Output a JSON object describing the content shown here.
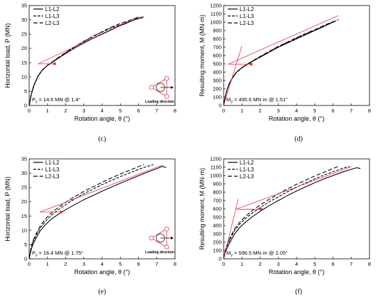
{
  "figure": {
    "inset_label": "Loading direction"
  },
  "colors": {
    "yield": "#e8323c",
    "line": "#000000",
    "inset": "#e8323c"
  },
  "chart_data": [
    {
      "id": "c",
      "type": "line",
      "caption": "(c)",
      "xlabel": "Rotation angle, θ (°)",
      "ylabel": "Horizontal load, P (MN)",
      "xlim": [
        0,
        8
      ],
      "ylim": [
        0,
        35
      ],
      "xticks": [
        0,
        1,
        2,
        3,
        4,
        5,
        6,
        7,
        8
      ],
      "yticks": [
        0,
        5,
        10,
        15,
        20,
        25,
        30,
        35
      ],
      "legend": {
        "placement": "top-left",
        "entries": [
          "L1-L2",
          "L1-L3",
          "L2-L3"
        ]
      },
      "yield_label": "P",
      "yield_sub": "y",
      "yield_value_text": " = 14.6 MN @ 1.4°",
      "yield_point": {
        "x": 1.4,
        "y": 14.6
      },
      "yield_lines": [
        [
          [
            0.5,
            14.6
          ],
          [
            1.4,
            14.6
          ]
        ],
        [
          [
            0.5,
            14.6
          ],
          [
            6.0,
            31.2
          ]
        ]
      ],
      "has_inset": true,
      "series": [
        {
          "name": "L1-L2",
          "style": "solid",
          "x": [
            0,
            0.05,
            0.1,
            0.2,
            0.3,
            0.5,
            0.7,
            1.0,
            1.4,
            1.8,
            2.2,
            2.6,
            3.0,
            3.4,
            3.8,
            4.2,
            4.6,
            5.0,
            5.3,
            5.6,
            5.9,
            6.1
          ],
          "y": [
            0,
            1.8,
            3.5,
            6.0,
            7.8,
            10.5,
            12.3,
            14.0,
            15.7,
            17.4,
            19.0,
            20.5,
            21.9,
            23.2,
            24.4,
            25.6,
            26.8,
            28.0,
            28.7,
            29.6,
            30.3,
            30.8
          ]
        },
        {
          "name": "L1-L3",
          "style": "dash",
          "x": [
            0,
            0.05,
            0.1,
            0.2,
            0.3,
            0.5,
            0.7,
            1.0,
            1.4,
            1.8,
            2.2,
            2.6,
            3.0,
            3.4,
            3.8,
            4.2,
            4.6,
            5.0,
            5.4,
            5.7,
            6.0,
            6.2
          ],
          "y": [
            0,
            1.5,
            3.2,
            5.7,
            7.6,
            10.3,
            12.2,
            14.0,
            15.8,
            17.6,
            19.3,
            20.9,
            22.4,
            23.8,
            25.1,
            26.3,
            27.4,
            28.3,
            29.2,
            29.9,
            30.4,
            30.6
          ]
        },
        {
          "name": "L2-L3",
          "style": "longdash",
          "x": [
            0,
            0.05,
            0.1,
            0.2,
            0.3,
            0.5,
            0.7,
            1.0,
            1.4,
            1.8,
            2.2,
            2.6,
            3.0,
            3.4,
            3.8,
            4.2,
            4.6,
            5.0,
            5.4,
            5.7,
            6.0,
            6.3
          ],
          "y": [
            0,
            1.7,
            3.4,
            5.9,
            7.7,
            10.4,
            12.3,
            14.1,
            15.9,
            17.7,
            19.4,
            21.0,
            22.5,
            23.9,
            25.2,
            26.5,
            27.7,
            28.7,
            29.6,
            30.3,
            30.8,
            31.0
          ]
        }
      ]
    },
    {
      "id": "d",
      "type": "line",
      "caption": "(d)",
      "xlabel": "Rotation angle, θ (°)",
      "ylabel": "Resulting moment, M (MN·m)",
      "xlim": [
        0,
        8
      ],
      "ylim": [
        0,
        1200
      ],
      "xticks": [
        0,
        1,
        2,
        3,
        4,
        5,
        6,
        7,
        8
      ],
      "yticks": [
        0,
        100,
        200,
        300,
        400,
        500,
        600,
        700,
        800,
        900,
        1000,
        1100,
        1200
      ],
      "legend": {
        "placement": "top-left",
        "entries": [
          "L1-L2",
          "L1-L3",
          "L2-L3"
        ]
      },
      "yield_label": "M",
      "yield_sub": "y",
      "yield_value_text": " = 495.6 MN·m @ 1.51°",
      "yield_point": {
        "x": 1.51,
        "y": 495.6
      },
      "yield_lines": [
        [
          [
            0.0,
            0.0
          ],
          [
            1.0,
            715.0
          ]
        ],
        [
          [
            0.25,
            495.6
          ],
          [
            1.51,
            495.6
          ]
        ],
        [
          [
            0.25,
            495.6
          ],
          [
            6.3,
            1080.0
          ]
        ]
      ],
      "has_inset": false,
      "series": [
        {
          "name": "L1-L2",
          "style": "solid",
          "x": [
            0,
            0.05,
            0.1,
            0.2,
            0.3,
            0.5,
            0.7,
            1.0,
            1.5,
            2.0,
            2.5,
            3.0,
            3.5,
            4.0,
            4.5,
            5.0,
            5.4,
            5.8,
            6.1
          ],
          "y": [
            0,
            60,
            120,
            200,
            260,
            340,
            400,
            455,
            520,
            580,
            640,
            700,
            750,
            800,
            850,
            900,
            940,
            980,
            1010
          ]
        },
        {
          "name": "L1-L3",
          "style": "dash",
          "x": [
            0,
            0.05,
            0.1,
            0.2,
            0.3,
            0.5,
            0.7,
            1.0,
            1.5,
            2.0,
            2.5,
            3.0,
            3.5,
            4.0,
            4.5,
            5.0,
            5.4,
            5.8,
            6.2
          ],
          "y": [
            0,
            55,
            115,
            195,
            255,
            335,
            395,
            452,
            522,
            585,
            645,
            705,
            758,
            810,
            860,
            905,
            945,
            985,
            1020
          ]
        },
        {
          "name": "L2-L3",
          "style": "longdash",
          "x": [
            0,
            0.05,
            0.1,
            0.2,
            0.3,
            0.5,
            0.7,
            1.0,
            1.5,
            2.0,
            2.5,
            3.0,
            3.5,
            4.0,
            4.5,
            5.0,
            5.4,
            5.8,
            6.3
          ],
          "y": [
            0,
            58,
            118,
            198,
            258,
            338,
            398,
            456,
            525,
            588,
            650,
            710,
            762,
            815,
            865,
            910,
            950,
            990,
            1030
          ]
        }
      ]
    },
    {
      "id": "e",
      "type": "line",
      "caption": "(e)",
      "xlabel": "Rotation angle, θ (°)",
      "ylabel": "Horizontal load, P (MN)",
      "xlim": [
        0,
        8
      ],
      "ylim": [
        0,
        35
      ],
      "xticks": [
        0,
        1,
        2,
        3,
        4,
        5,
        6,
        7,
        8
      ],
      "yticks": [
        0,
        5,
        10,
        15,
        20,
        25,
        30,
        35
      ],
      "legend": {
        "placement": "top-left",
        "entries": [
          "L1-L2",
          "L1-L3",
          "L2-L3"
        ]
      },
      "yield_label": "P",
      "yield_sub": "y",
      "yield_value_text": " = 16.4 MN @ 1.75°",
      "yield_point": {
        "x": 1.75,
        "y": 16.4
      },
      "yield_lines": [
        [
          [
            0.6,
            16.4
          ],
          [
            1.75,
            16.4
          ]
        ],
        [
          [
            0.6,
            16.4
          ],
          [
            7.3,
            32.8
          ]
        ]
      ],
      "has_inset": true,
      "series": [
        {
          "name": "L1-L2",
          "style": "solid",
          "x": [
            0,
            0.05,
            0.1,
            0.2,
            0.4,
            0.6,
            0.9,
            1.2,
            1.6,
            2.0,
            2.5,
            3.0,
            3.5,
            4.0,
            4.5,
            5.0,
            5.5,
            6.0,
            6.5,
            7.0,
            7.3,
            7.5
          ],
          "y": [
            0,
            1.5,
            3.0,
            5.0,
            7.5,
            9.8,
            12.0,
            13.8,
            15.6,
            17.2,
            19.0,
            20.7,
            22.2,
            23.7,
            25.1,
            26.5,
            27.8,
            29.1,
            30.4,
            31.6,
            32.4,
            32.0
          ]
        },
        {
          "name": "L1-L3",
          "style": "dash",
          "x": [
            0,
            0.05,
            0.1,
            0.2,
            0.4,
            0.6,
            0.9,
            1.2,
            1.6,
            2.0,
            2.5,
            3.0,
            3.5,
            4.0,
            4.5,
            5.0,
            5.5,
            6.0,
            6.4,
            6.8
          ],
          "y": [
            0,
            1.8,
            3.5,
            5.8,
            8.4,
            10.8,
            13.2,
            15.2,
            17.2,
            19.0,
            21.0,
            22.8,
            24.4,
            26.0,
            27.4,
            28.8,
            30.1,
            31.3,
            32.2,
            33.0
          ]
        },
        {
          "name": "L2-L3",
          "style": "longdash",
          "x": [
            0,
            0.05,
            0.1,
            0.2,
            0.4,
            0.6,
            0.9,
            1.2,
            1.6,
            2.0,
            2.5,
            3.0,
            3.5,
            4.0,
            4.5,
            5.0,
            5.5,
            6.0,
            6.3
          ],
          "y": [
            0,
            2.0,
            3.9,
            6.3,
            9.0,
            11.5,
            14.0,
            16.0,
            18.0,
            19.8,
            21.8,
            23.6,
            25.2,
            26.8,
            28.3,
            29.7,
            31.0,
            32.3,
            33.1
          ]
        }
      ]
    },
    {
      "id": "f",
      "type": "line",
      "caption": "(f)",
      "xlabel": "Rotation angle, θ (°)",
      "ylabel": "Resulting moment, M (MN·m)",
      "xlim": [
        0,
        8
      ],
      "ylim": [
        0,
        1200
      ],
      "xticks": [
        0,
        1,
        2,
        3,
        4,
        5,
        6,
        7,
        8
      ],
      "yticks": [
        0,
        100,
        200,
        300,
        400,
        500,
        600,
        700,
        800,
        900,
        1000,
        1100,
        1200
      ],
      "legend": {
        "placement": "top-left",
        "entries": [
          "L1-L2",
          "L1-L3",
          "L2-L3"
        ]
      },
      "yield_label": "M",
      "yield_sub": "y",
      "yield_value_text": " = 596.5 MN·m @ 2.05°",
      "yield_point": {
        "x": 2.05,
        "y": 596.5
      },
      "yield_lines": [
        [
          [
            0.0,
            0.0
          ],
          [
            0.8,
            720.0
          ]
        ],
        [
          [
            0.7,
            596.5
          ],
          [
            2.05,
            596.5
          ]
        ],
        [
          [
            0.7,
            596.5
          ],
          [
            7.0,
            1105.0
          ]
        ]
      ],
      "has_inset": false,
      "series": [
        {
          "name": "L1-L2",
          "style": "solid",
          "x": [
            0,
            0.05,
            0.1,
            0.2,
            0.4,
            0.6,
            0.9,
            1.2,
            1.6,
            2.0,
            2.5,
            3.0,
            3.5,
            4.0,
            4.5,
            5.0,
            5.5,
            6.0,
            6.5,
            7.0,
            7.3,
            7.5
          ],
          "y": [
            0,
            40,
            80,
            140,
            220,
            300,
            380,
            440,
            510,
            570,
            640,
            700,
            760,
            815,
            865,
            915,
            960,
            1000,
            1040,
            1075,
            1095,
            1085
          ]
        },
        {
          "name": "L1-L3",
          "style": "dash",
          "x": [
            0,
            0.05,
            0.1,
            0.2,
            0.4,
            0.6,
            0.9,
            1.2,
            1.6,
            2.0,
            2.5,
            3.0,
            3.5,
            4.0,
            4.5,
            5.0,
            5.5,
            6.0,
            6.5,
            6.9
          ],
          "y": [
            0,
            50,
            100,
            165,
            255,
            340,
            420,
            485,
            555,
            615,
            685,
            745,
            805,
            860,
            910,
            960,
            1005,
            1045,
            1085,
            1110
          ]
        },
        {
          "name": "L2-L3",
          "style": "longdash",
          "x": [
            0,
            0.05,
            0.1,
            0.2,
            0.4,
            0.6,
            0.9,
            1.2,
            1.6,
            2.0,
            2.5,
            3.0,
            3.5,
            4.0,
            4.5,
            5.0,
            5.5,
            6.0,
            6.3
          ],
          "y": [
            0,
            55,
            110,
            180,
            275,
            360,
            445,
            510,
            585,
            645,
            715,
            780,
            840,
            895,
            945,
            995,
            1040,
            1085,
            1110
          ]
        }
      ]
    }
  ]
}
